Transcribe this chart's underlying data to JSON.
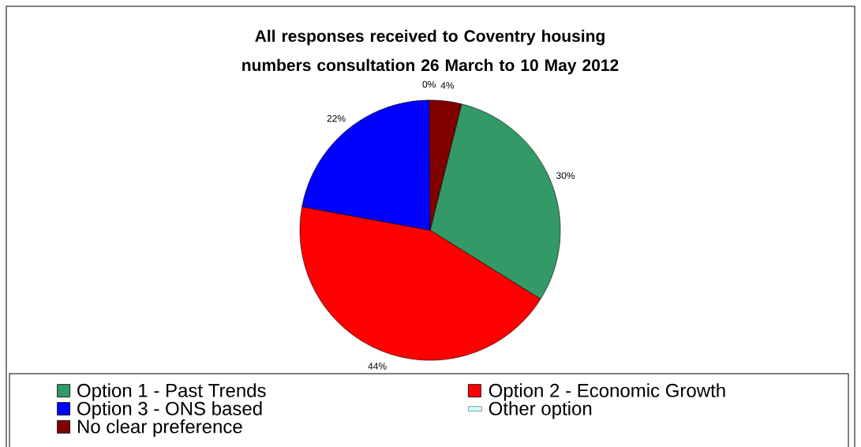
{
  "chart_data": {
    "type": "pie",
    "title": "All responses received to Coventry housing numbers consultation 26 March to 10 May 2012",
    "categories": [
      "Option 1 - Past Trends",
      "Option 2 - Economic Growth",
      "Option 3 - ONS based",
      "Other option",
      "No clear preference"
    ],
    "values": [
      30,
      44,
      22,
      0,
      4
    ],
    "value_labels": [
      "30%",
      "44%",
      "22%",
      "0%",
      "4%"
    ],
    "colors": [
      "#339966",
      "#ff0000",
      "#0000ff",
      "#ccffff",
      "#800000"
    ],
    "legend": "bottom"
  }
}
